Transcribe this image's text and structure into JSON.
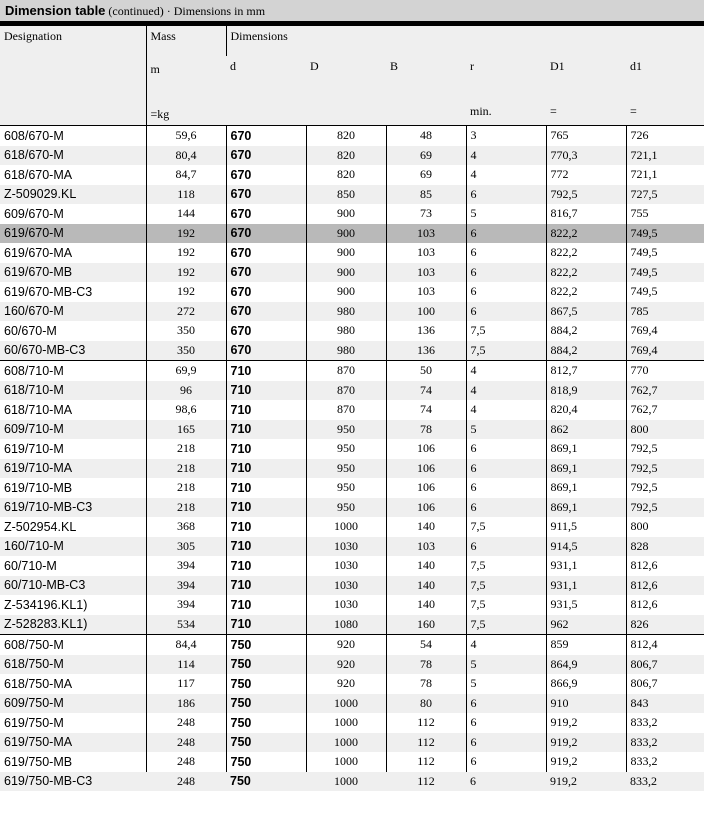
{
  "title": {
    "main": "Dimension table",
    "cont": "(continued)",
    "sep": " · ",
    "units": "Dimensions in mm"
  },
  "header": {
    "designation": "Designation",
    "mass": "Mass",
    "mass_sym": "m",
    "mass_unit": "=kg",
    "dimensions": "Dimensions",
    "d": "d",
    "D": "D",
    "B": "B",
    "r": "r",
    "r_unit": "min.",
    "D1": "D1",
    "d1": "d1",
    "D1_unit": "=",
    "d1_unit": "="
  },
  "highlight_color": "#b9b9b9",
  "rows": [
    [
      "608/670-M",
      "59,6",
      "670",
      "820",
      "48",
      "3",
      "765",
      "726"
    ],
    [
      "618/670-M",
      "80,4",
      "670",
      "820",
      "69",
      "4",
      "770,3",
      "721,1"
    ],
    [
      "618/670-MA",
      "84,7",
      "670",
      "820",
      "69",
      "4",
      "772",
      "721,1"
    ],
    [
      "Z-509029.KL",
      "118",
      "670",
      "850",
      "85",
      "6",
      "792,5",
      "727,5"
    ],
    [
      "609/670-M",
      "144",
      "670",
      "900",
      "73",
      "5",
      "816,7",
      "755"
    ],
    [
      "619/670-M",
      "192",
      "670",
      "900",
      "103",
      "6",
      "822,2",
      "749,5"
    ],
    [
      "619/670-MA",
      "192",
      "670",
      "900",
      "103",
      "6",
      "822,2",
      "749,5"
    ],
    [
      "619/670-MB",
      "192",
      "670",
      "900",
      "103",
      "6",
      "822,2",
      "749,5"
    ],
    [
      "619/670-MB-C3",
      "192",
      "670",
      "900",
      "103",
      "6",
      "822,2",
      "749,5"
    ],
    [
      "160/670-M",
      "272",
      "670",
      "980",
      "100",
      "6",
      "867,5",
      "785"
    ],
    [
      "60/670-M",
      "350",
      "670",
      "980",
      "136",
      "7,5",
      "884,2",
      "769,4"
    ],
    [
      "60/670-MB-C3",
      "350",
      "670",
      "980",
      "136",
      "7,5",
      "884,2",
      "769,4"
    ],
    [
      "608/710-M",
      "69,9",
      "710",
      "870",
      "50",
      "4",
      "812,7",
      "770"
    ],
    [
      "618/710-M",
      "96",
      "710",
      "870",
      "74",
      "4",
      "818,9",
      "762,7"
    ],
    [
      "618/710-MA",
      "98,6",
      "710",
      "870",
      "74",
      "4",
      "820,4",
      "762,7"
    ],
    [
      "609/710-M",
      "165",
      "710",
      "950",
      "78",
      "5",
      "862",
      "800"
    ],
    [
      "619/710-M",
      "218",
      "710",
      "950",
      "106",
      "6",
      "869,1",
      "792,5"
    ],
    [
      "619/710-MA",
      "218",
      "710",
      "950",
      "106",
      "6",
      "869,1",
      "792,5"
    ],
    [
      "619/710-MB",
      "218",
      "710",
      "950",
      "106",
      "6",
      "869,1",
      "792,5"
    ],
    [
      "619/710-MB-C3",
      "218",
      "710",
      "950",
      "106",
      "6",
      "869,1",
      "792,5"
    ],
    [
      "Z-502954.KL",
      "368",
      "710",
      "1000",
      "140",
      "7,5",
      "911,5",
      "800"
    ],
    [
      "160/710-M",
      "305",
      "710",
      "1030",
      "103",
      "6",
      "914,5",
      "828"
    ],
    [
      "60/710-M",
      "394",
      "710",
      "1030",
      "140",
      "7,5",
      "931,1",
      "812,6"
    ],
    [
      "60/710-MB-C3",
      "394",
      "710",
      "1030",
      "140",
      "7,5",
      "931,1",
      "812,6"
    ],
    [
      "Z-534196.KL1)",
      "394",
      "710",
      "1030",
      "140",
      "7,5",
      "931,5",
      "812,6"
    ],
    [
      "Z-528283.KL1)",
      "534",
      "710",
      "1080",
      "160",
      "7,5",
      "962",
      "826"
    ],
    [
      "608/750-M",
      "84,4",
      "750",
      "920",
      "54",
      "4",
      "859",
      "812,4"
    ],
    [
      "618/750-M",
      "114",
      "750",
      "920",
      "78",
      "5",
      "864,9",
      "806,7"
    ],
    [
      "618/750-MA",
      "117",
      "750",
      "920",
      "78",
      "5",
      "866,9",
      "806,7"
    ],
    [
      "609/750-M",
      "186",
      "750",
      "1000",
      "80",
      "6",
      "910",
      "843"
    ],
    [
      "619/750-M",
      "248",
      "750",
      "1000",
      "112",
      "6",
      "919,2",
      "833,2"
    ],
    [
      "619/750-MA",
      "248",
      "750",
      "1000",
      "112",
      "6",
      "919,2",
      "833,2"
    ],
    [
      "619/750-MB",
      "248",
      "750",
      "1000",
      "112",
      "6",
      "919,2",
      "833,2"
    ],
    [
      "619/750-MB-C3",
      "248",
      "750",
      "1000",
      "112",
      "6",
      "919,2",
      "833,2"
    ]
  ],
  "highlighted_row": "619/670-M"
}
